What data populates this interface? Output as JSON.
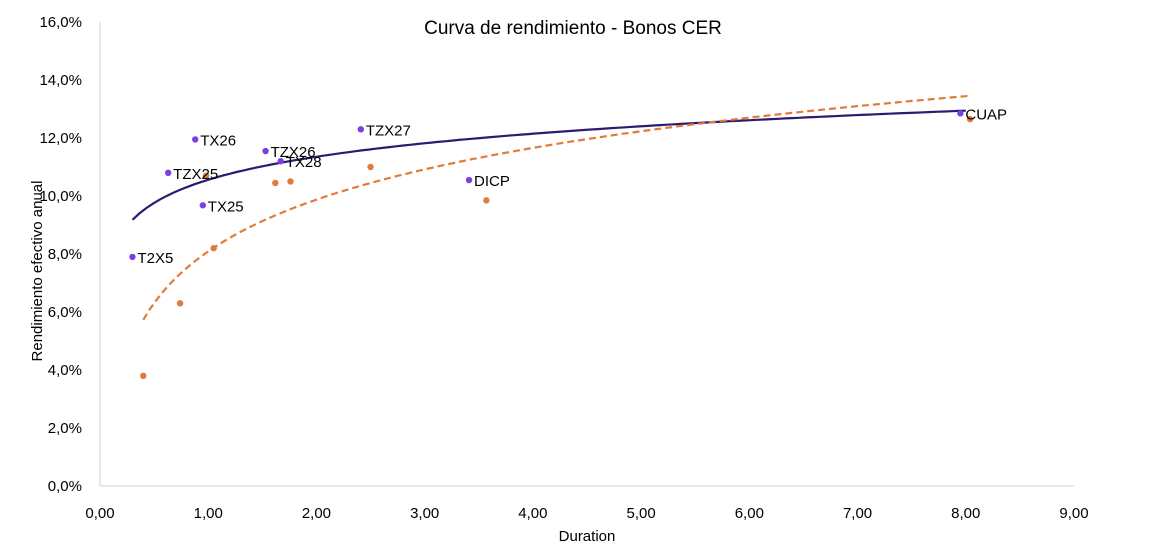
{
  "chart_data": {
    "type": "scatter",
    "title": "Curva de rendimiento - Bonos CER",
    "xlabel": "Duration",
    "ylabel": "Rendimiento efectivo anual",
    "xlim": [
      0,
      9
    ],
    "ylim": [
      0,
      0.16
    ],
    "xticks": [
      "0,00",
      "1,00",
      "2,00",
      "3,00",
      "4,00",
      "5,00",
      "6,00",
      "7,00",
      "8,00",
      "9,00"
    ],
    "yticks": [
      "0,0%",
      "2,0%",
      "4,0%",
      "6,0%",
      "8,0%",
      "10,0%",
      "12,0%",
      "14,0%",
      "16,0%"
    ],
    "grid": false,
    "legend": "none",
    "series": [
      {
        "color": "#7b3fe4",
        "points": [
          {
            "label": "T2X5",
            "x": 0.3,
            "y": 0.079
          },
          {
            "label": "TZX25",
            "x": 0.63,
            "y": 0.108
          },
          {
            "label": "TX26",
            "x": 0.88,
            "y": 0.1195
          },
          {
            "label": "TX25",
            "x": 0.95,
            "y": 0.0968
          },
          {
            "label": "TZX26",
            "x": 1.53,
            "y": 0.1155
          },
          {
            "label": "TX28",
            "x": 1.67,
            "y": 0.112
          },
          {
            "label": "TZX27",
            "x": 2.41,
            "y": 0.123
          },
          {
            "label": "DICP",
            "x": 3.41,
            "y": 0.1055
          },
          {
            "label": "CUAP",
            "x": 7.95,
            "y": 0.1285
          }
        ],
        "trend": {
          "type": "logarithmic",
          "style": "solid",
          "color": "#2e1a6e",
          "x_range": [
            0.3,
            8.0
          ]
        }
      },
      {
        "color": "#e07b39",
        "points": [
          {
            "x": 0.4,
            "y": 0.038
          },
          {
            "x": 0.74,
            "y": 0.063
          },
          {
            "x": 0.98,
            "y": 0.107
          },
          {
            "x": 1.05,
            "y": 0.082
          },
          {
            "x": 1.62,
            "y": 0.1045
          },
          {
            "x": 1.76,
            "y": 0.105
          },
          {
            "x": 2.5,
            "y": 0.11
          },
          {
            "x": 3.57,
            "y": 0.0985
          },
          {
            "x": 8.04,
            "y": 0.1265
          }
        ],
        "trend": {
          "type": "logarithmic",
          "style": "dashed",
          "color": "#e07b39",
          "x_range": [
            0.4,
            8.05
          ]
        }
      }
    ]
  }
}
